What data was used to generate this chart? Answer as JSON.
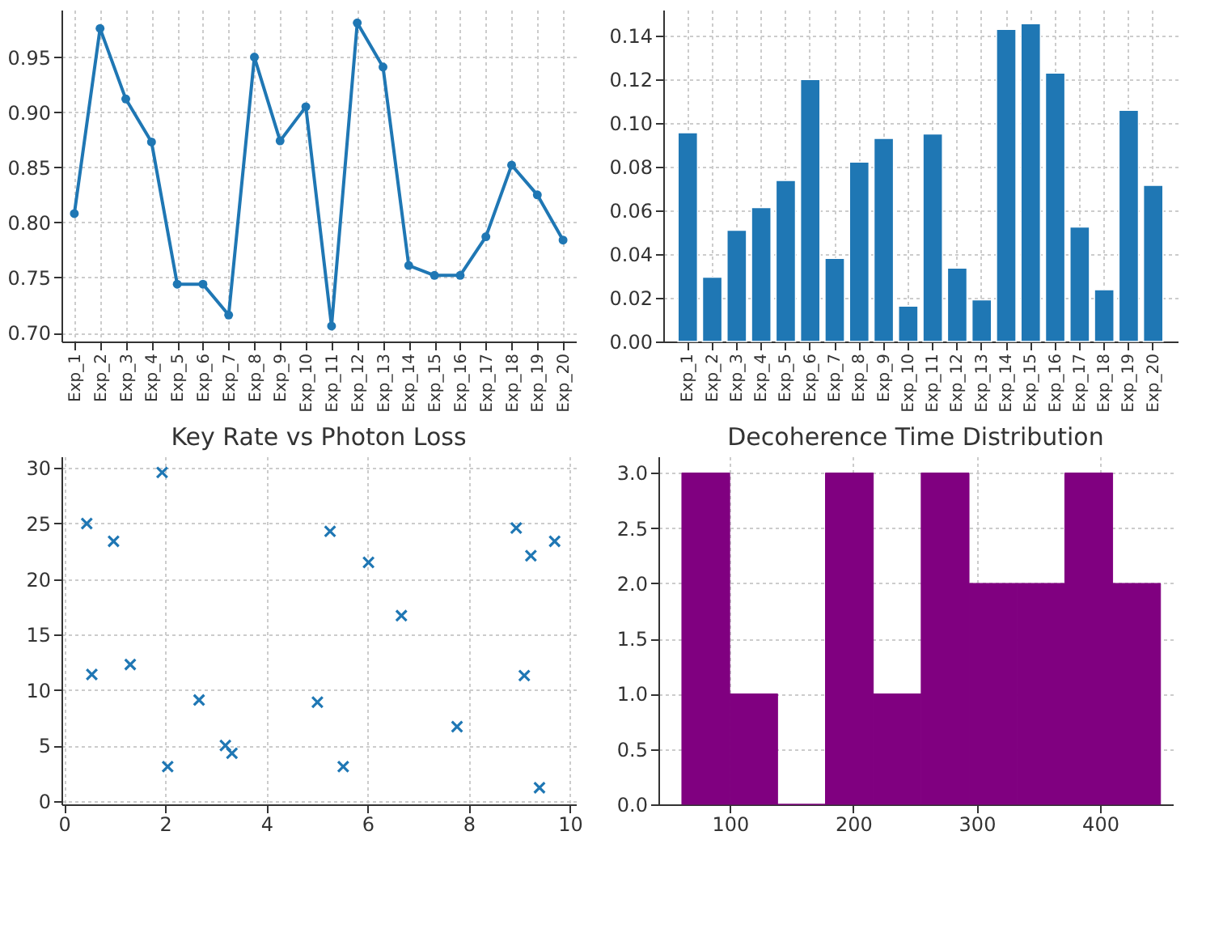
{
  "chart_data": [
    {
      "type": "line",
      "categories": [
        "Exp_1",
        "Exp_2",
        "Exp_3",
        "Exp_4",
        "Exp_5",
        "Exp_6",
        "Exp_7",
        "Exp_8",
        "Exp_9",
        "Exp_10",
        "Exp_11",
        "Exp_12",
        "Exp_13",
        "Exp_14",
        "Exp_15",
        "Exp_16",
        "Exp_17",
        "Exp_18",
        "Exp_19",
        "Exp_20"
      ],
      "values": [
        0.808,
        0.976,
        0.912,
        0.873,
        0.744,
        0.744,
        0.716,
        0.95,
        0.874,
        0.905,
        0.706,
        0.981,
        0.941,
        0.761,
        0.752,
        0.752,
        0.787,
        0.852,
        0.825,
        0.784
      ],
      "color": "#1f77b4",
      "marker": "circle",
      "ylim": [
        0.692,
        0.993
      ],
      "yticks": [
        {
          "value": 0.7,
          "label": "0.70"
        },
        0.75,
        {
          "value": 0.8,
          "label": "0.80"
        },
        0.85,
        {
          "value": 0.9,
          "label": "0.90"
        },
        0.95
      ],
      "grid": true
    },
    {
      "type": "bar",
      "categories": [
        "Exp_1",
        "Exp_2",
        "Exp_3",
        "Exp_4",
        "Exp_5",
        "Exp_6",
        "Exp_7",
        "Exp_8",
        "Exp_9",
        "Exp_10",
        "Exp_11",
        "Exp_12",
        "Exp_13",
        "Exp_14",
        "Exp_15",
        "Exp_16",
        "Exp_17",
        "Exp_18",
        "Exp_19",
        "Exp_20"
      ],
      "values": [
        0.0957,
        0.0295,
        0.051,
        0.0614,
        0.0738,
        0.12,
        0.0381,
        0.0822,
        0.0931,
        0.0162,
        0.0951,
        0.0337,
        0.0191,
        0.143,
        0.1456,
        0.123,
        0.0525,
        0.0237,
        0.106,
        0.0716
      ],
      "color": "#1f77b4",
      "ylim": [
        0,
        0.152
      ],
      "yticks": [
        {
          "value": 0,
          "label": "0.00"
        },
        0.02,
        0.04,
        0.06,
        0.08,
        {
          "value": 0.1,
          "label": "0.10"
        },
        0.12,
        0.14
      ],
      "grid": true
    },
    {
      "type": "scatter",
      "title": "Key Rate vs Photon Loss",
      "x": [
        0.45,
        0.55,
        0.98,
        1.31,
        1.94,
        2.05,
        2.67,
        3.19,
        3.32,
        5.01,
        5.26,
        5.52,
        6.02,
        6.67,
        7.77,
        8.94,
        9.1,
        9.23,
        9.4,
        9.7
      ],
      "values": [
        25.0,
        11.4,
        23.4,
        12.3,
        29.6,
        3.1,
        9.1,
        5.0,
        4.3,
        8.9,
        24.3,
        3.1,
        21.5,
        16.7,
        6.7,
        24.6,
        11.3,
        22.1,
        1.2,
        23.4
      ],
      "color": "#1f77b4",
      "marker": "cross",
      "xlim": [
        -0.05,
        10.12
      ],
      "ylim": [
        -0.3,
        31.05
      ],
      "xticks": [
        0,
        2,
        4,
        6,
        8,
        10
      ],
      "yticks": [
        0,
        5,
        10,
        15,
        20,
        25,
        30
      ],
      "grid": true
    },
    {
      "type": "histogram",
      "title": "Decoherence Time Distribution",
      "bins": [
        61,
        99.8,
        138.6,
        177.4,
        216.2,
        255,
        293.8,
        332.6,
        371.4,
        410.2,
        449
      ],
      "values": [
        3,
        1,
        0,
        3,
        1,
        3,
        2,
        2,
        3,
        2
      ],
      "color": "#800080",
      "xlim": [
        42,
        459
      ],
      "ylim": [
        0,
        3.15
      ],
      "xticks": [
        100,
        200,
        300,
        400
      ],
      "yticks": [
        {
          "value": 0,
          "label": "0.0"
        },
        0.5,
        {
          "value": 1,
          "label": "1.0"
        },
        1.5,
        {
          "value": 2,
          "label": "2.0"
        },
        2.5,
        {
          "value": 3,
          "label": "3.0"
        }
      ],
      "grid": true
    }
  ]
}
